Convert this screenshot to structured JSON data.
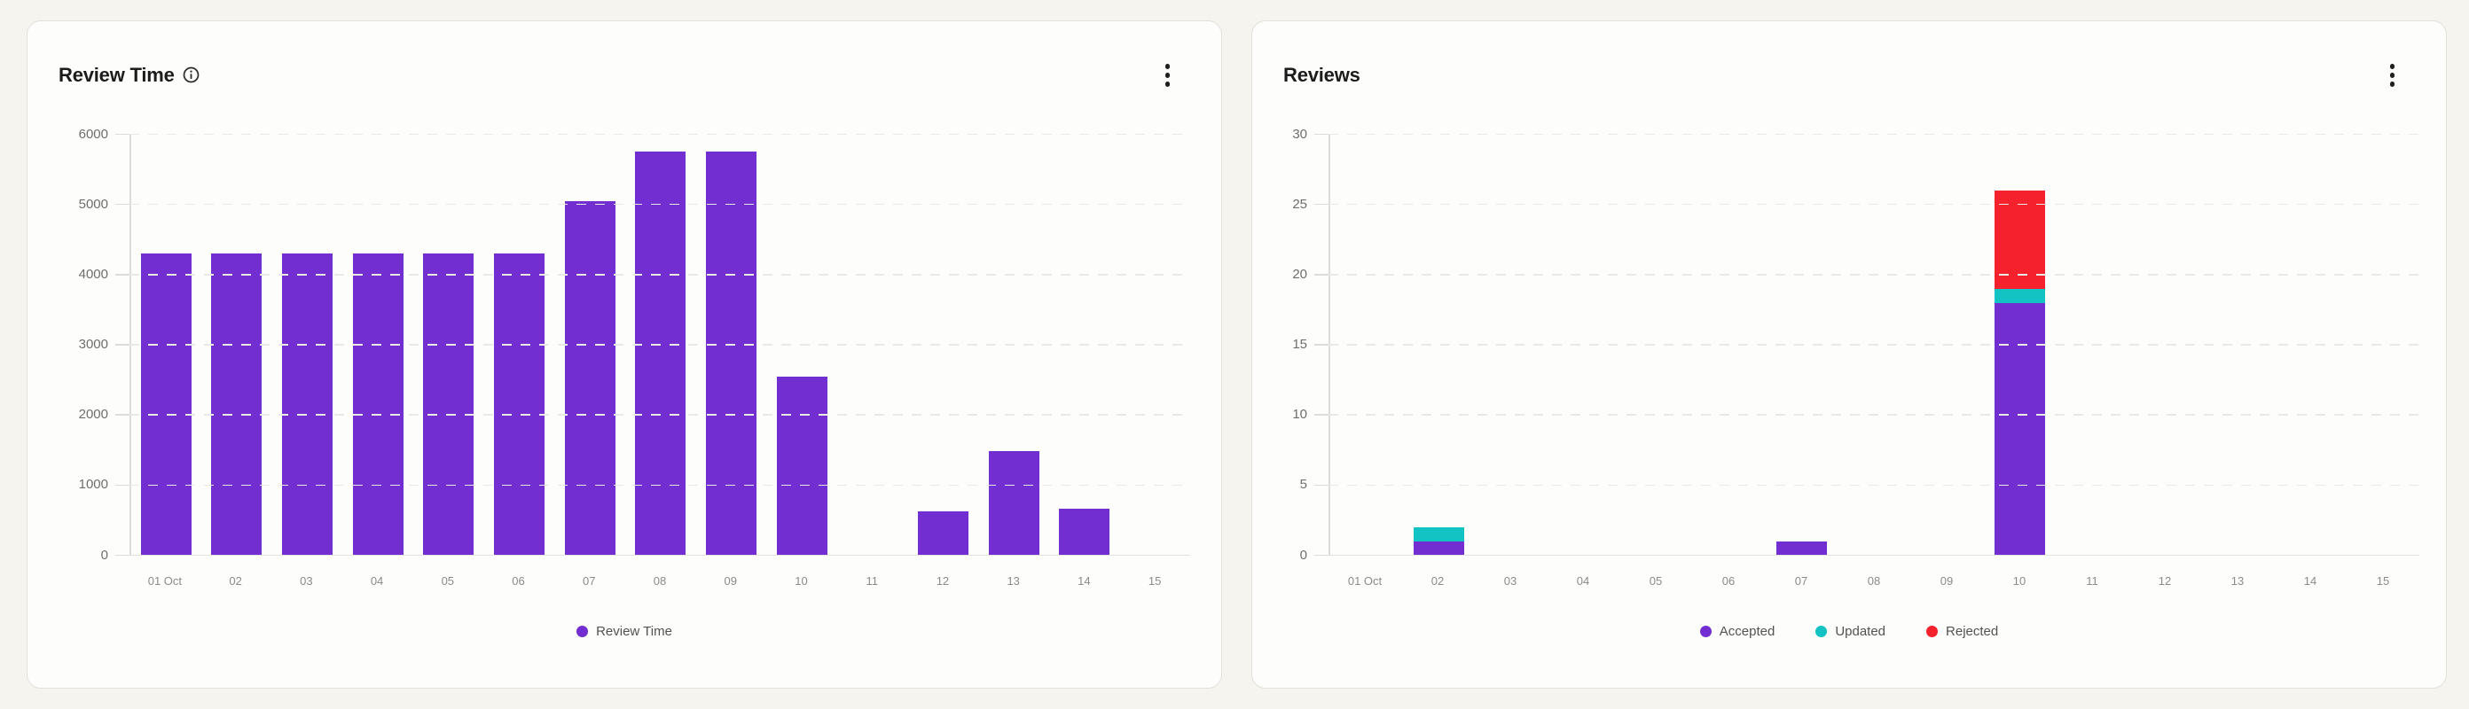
{
  "colors": {
    "accent_purple": "#722ED1",
    "accent_cyan": "#13C2C2",
    "accent_red": "#F5222D",
    "page_background": "#F5F4EF",
    "card_background": "#FDFDFB",
    "card_border": "#E3E1D9"
  },
  "cards": [
    {
      "title": "Review Time",
      "info_icon": "info-circle-icon",
      "menu_icon": "kebab-vertical-icon"
    },
    {
      "title": "Reviews",
      "menu_icon": "kebab-vertical-icon"
    }
  ],
  "chart_data": [
    {
      "type": "bar",
      "title": "Review Time",
      "categories": [
        "01 Oct",
        "02",
        "03",
        "04",
        "05",
        "06",
        "07",
        "08",
        "09",
        "10",
        "11",
        "12",
        "13",
        "14",
        "15"
      ],
      "series": [
        {
          "name": "Review Time",
          "color": "#722ED1",
          "values": [
            4300,
            4300,
            4300,
            4300,
            4300,
            4300,
            5050,
            5750,
            5750,
            2550,
            0,
            620,
            1480,
            660,
            0
          ]
        }
      ],
      "stacked": false,
      "ylim": [
        0,
        6000
      ],
      "ytick_step": 1000,
      "yticks": [
        0,
        1000,
        2000,
        3000,
        4000,
        5000,
        6000
      ],
      "grid": "horizontal-dashed",
      "legend_position": "bottom-center"
    },
    {
      "type": "bar",
      "title": "Reviews",
      "categories": [
        "01 Oct",
        "02",
        "03",
        "04",
        "05",
        "06",
        "07",
        "08",
        "09",
        "10",
        "11",
        "12",
        "13",
        "14",
        "15"
      ],
      "series": [
        {
          "name": "Accepted",
          "color": "#722ED1",
          "values": [
            0,
            1,
            0,
            0,
            0,
            0,
            1,
            0,
            0,
            18,
            0,
            0,
            0,
            0,
            0
          ]
        },
        {
          "name": "Updated",
          "color": "#13C2C2",
          "values": [
            0,
            1,
            0,
            0,
            0,
            0,
            0,
            0,
            0,
            1,
            0,
            0,
            0,
            0,
            0
          ]
        },
        {
          "name": "Rejected",
          "color": "#F5222D",
          "values": [
            0,
            0,
            0,
            0,
            0,
            0,
            0,
            0,
            0,
            7,
            0,
            0,
            0,
            0,
            0
          ]
        }
      ],
      "stacked": true,
      "ylim": [
        0,
        30
      ],
      "ytick_step": 5,
      "yticks": [
        0,
        5,
        10,
        15,
        20,
        25,
        30
      ],
      "grid": "horizontal-dashed",
      "legend_position": "bottom-center"
    }
  ]
}
